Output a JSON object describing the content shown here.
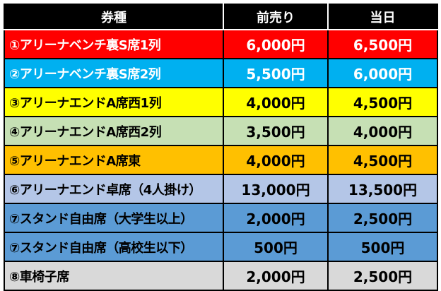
{
  "header": {
    "ticket": "券種",
    "advance": "前売り",
    "day_of": "当日"
  },
  "rows": [
    {
      "ticket": "①アリーナベンチ裏S席1列",
      "advance": "6,000円",
      "day_of": "6,500円",
      "bg": "#ff0000",
      "fg": "#ffffff"
    },
    {
      "ticket": "②アリーナベンチ裏S席2列",
      "advance": "5,500円",
      "day_of": "6,000円",
      "bg": "#00b0f0",
      "fg": "#ffffff"
    },
    {
      "ticket": "③アリーナエンドA席西1列",
      "advance": "4,000円",
      "day_of": "4,500円",
      "bg": "#ffff00",
      "fg": "#000000"
    },
    {
      "ticket": "④アリーナエンドA席西2列",
      "advance": "3,500円",
      "day_of": "4,000円",
      "bg": "#c6e0b4",
      "fg": "#000000"
    },
    {
      "ticket": "⑤アリーナエンドA席東",
      "advance": "4,000円",
      "day_of": "4,500円",
      "bg": "#ffc000",
      "fg": "#000000"
    },
    {
      "ticket": "⑥アリーナエンド卓席（4人掛け）",
      "advance": "13,000円",
      "day_of": "13,500円",
      "bg": "#b4c6e7",
      "fg": "#000000"
    },
    {
      "ticket": "⑦スタンド自由席（大学生以上）",
      "advance": "2,000円",
      "day_of": "2,500円",
      "bg": "#5b9bd5",
      "fg": "#000000"
    },
    {
      "ticket": "⑦スタンド自由席（高校生以下）",
      "advance": "500円",
      "day_of": "500円",
      "bg": "#5b9bd5",
      "fg": "#000000"
    },
    {
      "ticket": "⑧車椅子席",
      "advance": "2,000円",
      "day_of": "2,500円",
      "bg": "#d9d9d9",
      "fg": "#000000"
    }
  ]
}
